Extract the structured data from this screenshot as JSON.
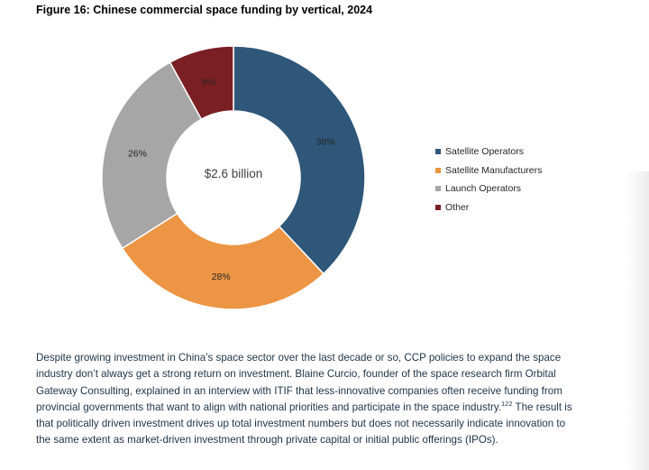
{
  "figure": {
    "title": "Figure 16: Chinese commercial space funding by vertical, 2024",
    "center_label": "$2.6 billion"
  },
  "chart_data": {
    "type": "pie",
    "variant": "donut",
    "title": "Figure 16: Chinese commercial space funding by vertical, 2024",
    "center_label": "$2.6 billion",
    "categories": [
      "Satellite Operators",
      "Satellite Manufacturers",
      "Launch Operators",
      "Other"
    ],
    "values": [
      38,
      28,
      26,
      8
    ],
    "labels": [
      "38%",
      "28%",
      "26%",
      "8%"
    ],
    "colors": [
      "#2e5779",
      "#ec9544",
      "#a6a6a6",
      "#7a1f24"
    ],
    "legend_position": "right"
  },
  "legend": {
    "items": [
      {
        "label": "Satellite Operators",
        "color": "#2e5779"
      },
      {
        "label": "Satellite Manufacturers",
        "color": "#ec9544"
      },
      {
        "label": "Launch Operators",
        "color": "#a6a6a6"
      },
      {
        "label": "Other",
        "color": "#7a1f24"
      }
    ]
  },
  "body": {
    "paragraph_part1": "Despite growing investment in China’s space sector over the last decade or so, CCP policies to expand the space industry don’t always get a strong return on investment. Blaine Curcio, founder of the space research firm Orbital Gateway Consulting, explained in an interview with ITIF that less-innovative companies often receive funding from provincial governments that want to align with national priorities and participate in the space industry.",
    "footnote": "122",
    "paragraph_part2": " The result is that politically driven investment drives up total investment numbers but does not necessarily indicate innovation to the same extent as market-driven investment through private capital or initial public offerings (IPOs)."
  }
}
